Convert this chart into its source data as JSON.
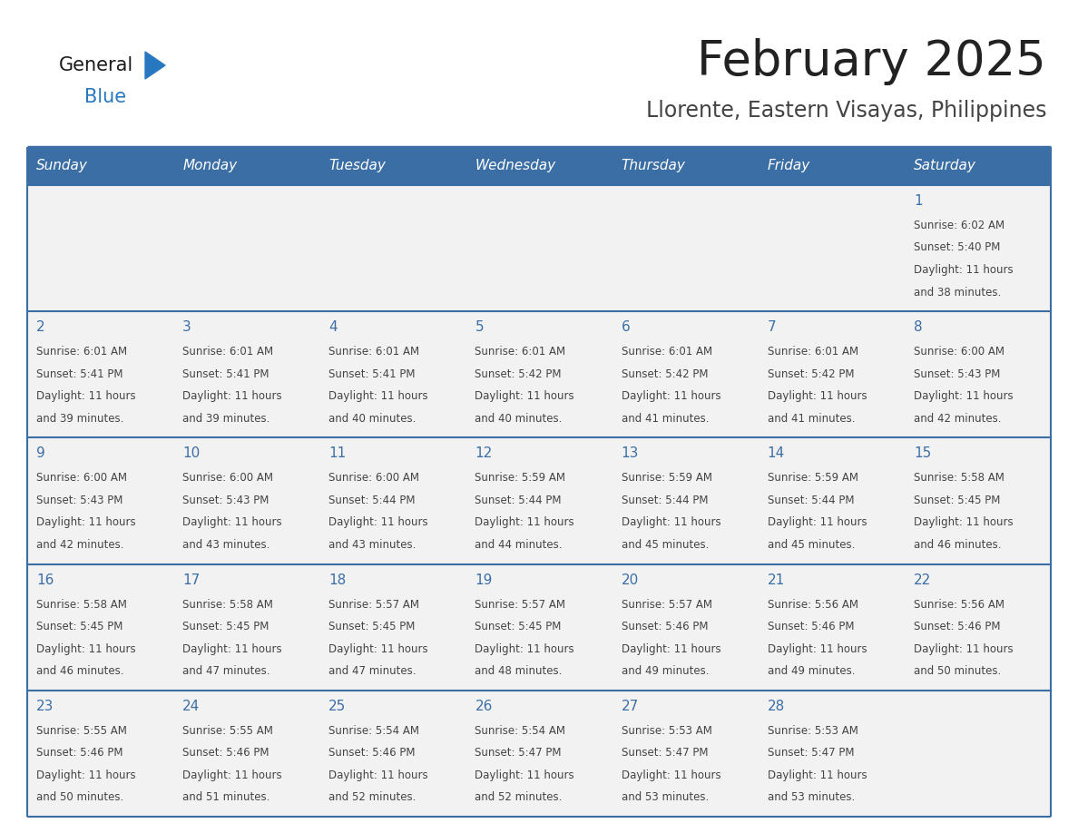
{
  "title": "February 2025",
  "subtitle": "Llorente, Eastern Visayas, Philippines",
  "days_of_week": [
    "Sunday",
    "Monday",
    "Tuesday",
    "Wednesday",
    "Thursday",
    "Friday",
    "Saturday"
  ],
  "header_bg": "#3b6ea5",
  "header_text": "#ffffff",
  "cell_bg_row1": "#f2f2f2",
  "cell_bg_data": "#f2f2f2",
  "cell_bg_white": "#ffffff",
  "divider_color": "#3b6ea5",
  "text_color": "#444444",
  "day_num_color": "#3b6ea5",
  "logo_general_color": "#1a1a1a",
  "logo_blue_color": "#2878bf",
  "title_color": "#222222",
  "subtitle_color": "#444444",
  "calendar_data": [
    [
      {
        "day": null,
        "sunrise": null,
        "sunset": null,
        "daylight": null
      },
      {
        "day": null,
        "sunrise": null,
        "sunset": null,
        "daylight": null
      },
      {
        "day": null,
        "sunrise": null,
        "sunset": null,
        "daylight": null
      },
      {
        "day": null,
        "sunrise": null,
        "sunset": null,
        "daylight": null
      },
      {
        "day": null,
        "sunrise": null,
        "sunset": null,
        "daylight": null
      },
      {
        "day": null,
        "sunrise": null,
        "sunset": null,
        "daylight": null
      },
      {
        "day": 1,
        "sunrise": "6:02 AM",
        "sunset": "5:40 PM",
        "daylight": "11 hours and 38 minutes."
      }
    ],
    [
      {
        "day": 2,
        "sunrise": "6:01 AM",
        "sunset": "5:41 PM",
        "daylight": "11 hours and 39 minutes."
      },
      {
        "day": 3,
        "sunrise": "6:01 AM",
        "sunset": "5:41 PM",
        "daylight": "11 hours and 39 minutes."
      },
      {
        "day": 4,
        "sunrise": "6:01 AM",
        "sunset": "5:41 PM",
        "daylight": "11 hours and 40 minutes."
      },
      {
        "day": 5,
        "sunrise": "6:01 AM",
        "sunset": "5:42 PM",
        "daylight": "11 hours and 40 minutes."
      },
      {
        "day": 6,
        "sunrise": "6:01 AM",
        "sunset": "5:42 PM",
        "daylight": "11 hours and 41 minutes."
      },
      {
        "day": 7,
        "sunrise": "6:01 AM",
        "sunset": "5:42 PM",
        "daylight": "11 hours and 41 minutes."
      },
      {
        "day": 8,
        "sunrise": "6:00 AM",
        "sunset": "5:43 PM",
        "daylight": "11 hours and 42 minutes."
      }
    ],
    [
      {
        "day": 9,
        "sunrise": "6:00 AM",
        "sunset": "5:43 PM",
        "daylight": "11 hours and 42 minutes."
      },
      {
        "day": 10,
        "sunrise": "6:00 AM",
        "sunset": "5:43 PM",
        "daylight": "11 hours and 43 minutes."
      },
      {
        "day": 11,
        "sunrise": "6:00 AM",
        "sunset": "5:44 PM",
        "daylight": "11 hours and 43 minutes."
      },
      {
        "day": 12,
        "sunrise": "5:59 AM",
        "sunset": "5:44 PM",
        "daylight": "11 hours and 44 minutes."
      },
      {
        "day": 13,
        "sunrise": "5:59 AM",
        "sunset": "5:44 PM",
        "daylight": "11 hours and 45 minutes."
      },
      {
        "day": 14,
        "sunrise": "5:59 AM",
        "sunset": "5:44 PM",
        "daylight": "11 hours and 45 minutes."
      },
      {
        "day": 15,
        "sunrise": "5:58 AM",
        "sunset": "5:45 PM",
        "daylight": "11 hours and 46 minutes."
      }
    ],
    [
      {
        "day": 16,
        "sunrise": "5:58 AM",
        "sunset": "5:45 PM",
        "daylight": "11 hours and 46 minutes."
      },
      {
        "day": 17,
        "sunrise": "5:58 AM",
        "sunset": "5:45 PM",
        "daylight": "11 hours and 47 minutes."
      },
      {
        "day": 18,
        "sunrise": "5:57 AM",
        "sunset": "5:45 PM",
        "daylight": "11 hours and 47 minutes."
      },
      {
        "day": 19,
        "sunrise": "5:57 AM",
        "sunset": "5:45 PM",
        "daylight": "11 hours and 48 minutes."
      },
      {
        "day": 20,
        "sunrise": "5:57 AM",
        "sunset": "5:46 PM",
        "daylight": "11 hours and 49 minutes."
      },
      {
        "day": 21,
        "sunrise": "5:56 AM",
        "sunset": "5:46 PM",
        "daylight": "11 hours and 49 minutes."
      },
      {
        "day": 22,
        "sunrise": "5:56 AM",
        "sunset": "5:46 PM",
        "daylight": "11 hours and 50 minutes."
      }
    ],
    [
      {
        "day": 23,
        "sunrise": "5:55 AM",
        "sunset": "5:46 PM",
        "daylight": "11 hours and 50 minutes."
      },
      {
        "day": 24,
        "sunrise": "5:55 AM",
        "sunset": "5:46 PM",
        "daylight": "11 hours and 51 minutes."
      },
      {
        "day": 25,
        "sunrise": "5:54 AM",
        "sunset": "5:46 PM",
        "daylight": "11 hours and 52 minutes."
      },
      {
        "day": 26,
        "sunrise": "5:54 AM",
        "sunset": "5:47 PM",
        "daylight": "11 hours and 52 minutes."
      },
      {
        "day": 27,
        "sunrise": "5:53 AM",
        "sunset": "5:47 PM",
        "daylight": "11 hours and 53 minutes."
      },
      {
        "day": 28,
        "sunrise": "5:53 AM",
        "sunset": "5:47 PM",
        "daylight": "11 hours and 53 minutes."
      },
      {
        "day": null,
        "sunrise": null,
        "sunset": null,
        "daylight": null
      }
    ]
  ]
}
